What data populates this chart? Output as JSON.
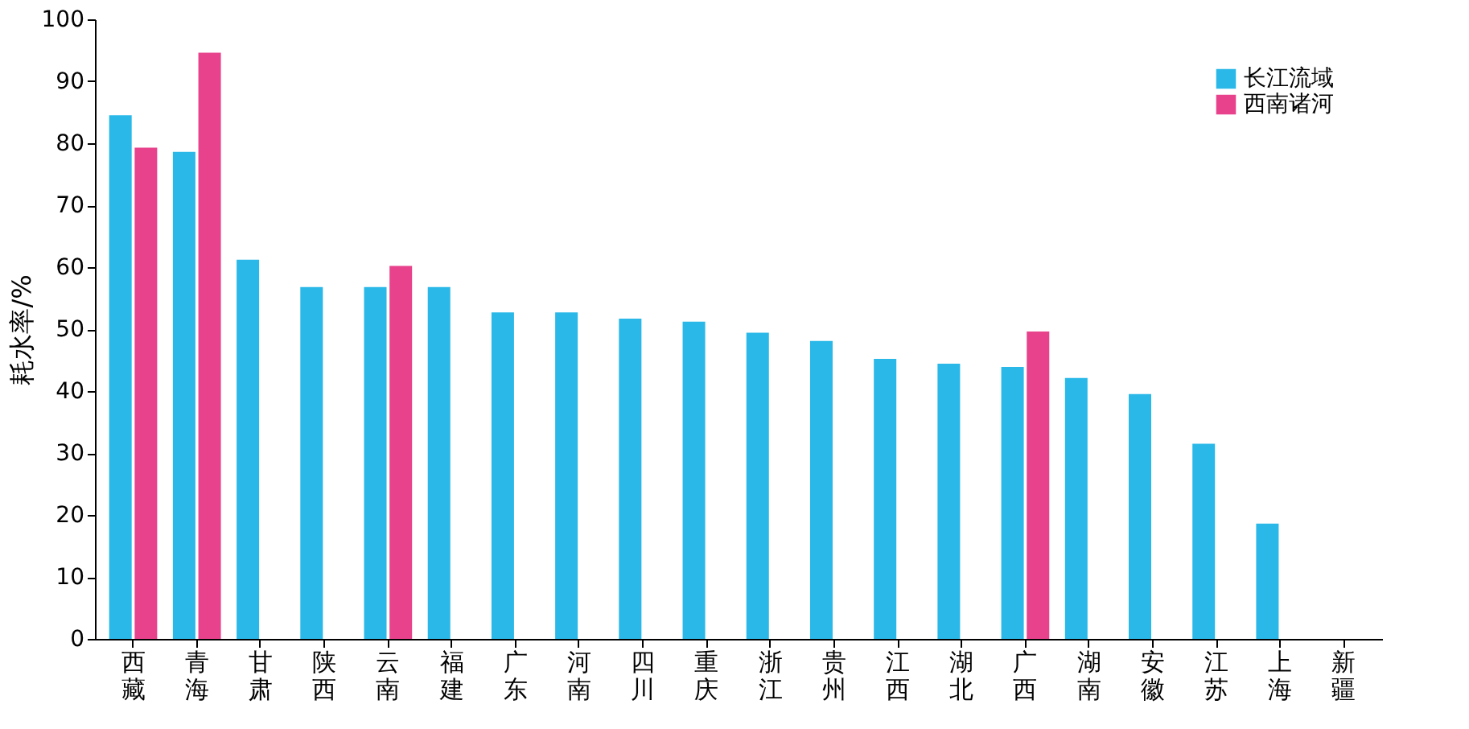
{
  "chart_data": {
    "type": "bar",
    "ylabel": "耗水率/%",
    "categories": [
      "西藏",
      "青海",
      "甘肃",
      "陕西",
      "云南",
      "福建",
      "广东",
      "河南",
      "四川",
      "重庆",
      "浙江",
      "贵州",
      "江西",
      "湖北",
      "广西",
      "湖南",
      "安徽",
      "江苏",
      "上海",
      "新疆"
    ],
    "series": [
      {
        "name": "长江流域",
        "color": "#29b8e8",
        "values": [
          84.5,
          78.6,
          61.2,
          56.8,
          56.8,
          56.8,
          52.7,
          52.7,
          51.7,
          51.2,
          49.4,
          48.1,
          45.2,
          44.4,
          43.9,
          42.1,
          39.5,
          31.5,
          18.6,
          null
        ]
      },
      {
        "name": "西南诸河",
        "color": "#e8428c",
        "values": [
          79.3,
          94.6,
          null,
          null,
          60.2,
          null,
          null,
          null,
          null,
          null,
          null,
          null,
          null,
          null,
          49.6,
          null,
          null,
          null,
          null,
          null
        ]
      }
    ],
    "ylim": [
      0,
      100
    ],
    "yticks": [
      0,
      10,
      20,
      30,
      40,
      50,
      60,
      70,
      80,
      90,
      100
    ],
    "grid": false,
    "legend": "top right"
  }
}
